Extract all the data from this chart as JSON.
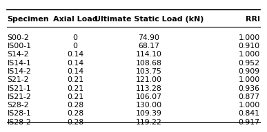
{
  "columns": [
    "Specimen",
    "Axial Load",
    "Ultimate Static Load (kN)",
    "RRI"
  ],
  "rows": [
    [
      "S00-2",
      "0",
      "74.90",
      "1.000"
    ],
    [
      "IS00-1",
      "0",
      "68.17",
      "0.910"
    ],
    [
      "S14-2",
      "0.14",
      "114.10",
      "1.000"
    ],
    [
      "IS14-1",
      "0.14",
      "108.68",
      "0.952"
    ],
    [
      "IS14-2",
      "0.14",
      "103.75",
      "0.909"
    ],
    [
      "S21-2",
      "0.21",
      "121.00",
      "1.000"
    ],
    [
      "IS21-1",
      "0.21",
      "113.28",
      "0.936"
    ],
    [
      "IS21-2",
      "0.21",
      "106.07",
      "0.877"
    ],
    [
      "S28-2",
      "0.28",
      "130.00",
      "1.000"
    ],
    [
      "IS28-1",
      "0.28",
      "109.39",
      "0.841"
    ],
    [
      "IS28-2",
      "0.28",
      "119.22",
      "0.917"
    ]
  ],
  "col_aligns": [
    "left",
    "center",
    "center",
    "right"
  ],
  "header_fontsize": 8.0,
  "row_fontsize": 7.8,
  "background_color": "#ffffff",
  "line_color": "#000000"
}
